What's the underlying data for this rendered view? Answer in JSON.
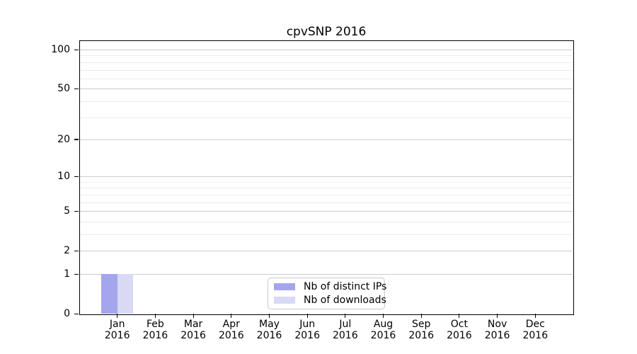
{
  "chart_data": {
    "type": "bar",
    "title": "cpvSNP 2016",
    "categories": [
      "Jan",
      "Feb",
      "Mar",
      "Apr",
      "May",
      "Jun",
      "Jul",
      "Aug",
      "Sep",
      "Oct",
      "Nov",
      "Dec"
    ],
    "x_year_label": "2016",
    "series": [
      {
        "name": "Nb of distinct IPs",
        "color": "#a5a5ee",
        "values": [
          1,
          0,
          0,
          0,
          0,
          0,
          0,
          0,
          0,
          0,
          0,
          0
        ]
      },
      {
        "name": "Nb of downloads",
        "color": "#d9d9f6",
        "values": [
          1,
          0,
          0,
          0,
          0,
          0,
          0,
          0,
          0,
          0,
          0,
          0
        ]
      }
    ],
    "y_scale": "log1p",
    "y_major_ticks": [
      0,
      1,
      2,
      5,
      10,
      20,
      50,
      100
    ],
    "y_minor_ticks": [
      3,
      4,
      6,
      7,
      8,
      9,
      30,
      40,
      60,
      70,
      80,
      90
    ],
    "ylim": [
      0,
      118
    ],
    "grid": true,
    "legend_position": "bottom-center",
    "colors": {
      "major_grid": "#cccccc",
      "minor_grid": "#ececec",
      "axis": "#000000"
    }
  }
}
